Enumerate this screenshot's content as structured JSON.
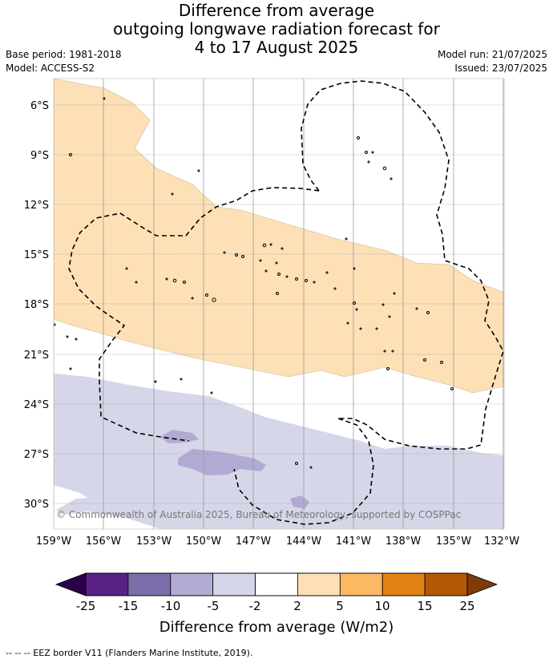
{
  "title": {
    "line1": "Difference from average",
    "line2": "outgoing longwave radiation forecast for",
    "line3": "4 to 17 August 2025"
  },
  "meta_left": {
    "base_period": "Base period: 1981-2018",
    "model": "Model: ACCESS-S2"
  },
  "meta_right": {
    "model_run": "Model run: 21/07/2025",
    "issued": "Issued: 23/07/2025"
  },
  "map": {
    "lat_labels": [
      "6°S",
      "9°S",
      "12°S",
      "15°S",
      "18°S",
      "21°S",
      "24°S",
      "27°S",
      "30°S"
    ],
    "lon_labels": [
      "159°W",
      "156°W",
      "153°W",
      "150°W",
      "147°W",
      "144°W",
      "141°W",
      "138°W",
      "135°W",
      "132°W"
    ],
    "copyright": "© Commonwealth of Australia 2025, Bureau of Meteorology, supported by COSPPac",
    "positive_anomaly_color": "#fde0b6",
    "negative_anomaly_color": "#d6d6e9",
    "strong_negative_color": "#b1abd3"
  },
  "colorbar": {
    "ticks": [
      "-25",
      "-15",
      "-10",
      "-5",
      "-2",
      "2",
      "5",
      "10",
      "15",
      "25"
    ],
    "colors": [
      "#5a2185",
      "#7d6dab",
      "#b1abd3",
      "#d6d6e9",
      "#ffffff",
      "#fde0b6",
      "#fdb863",
      "#e08214",
      "#b35806"
    ],
    "low_extend_color": "#2d004b",
    "high_extend_color": "#7f3b08",
    "label": "Difference from average (W/m2)"
  },
  "legend_footer": "--  --  -- EEZ border V11 (Flanders Marine Institute, 2019)."
}
